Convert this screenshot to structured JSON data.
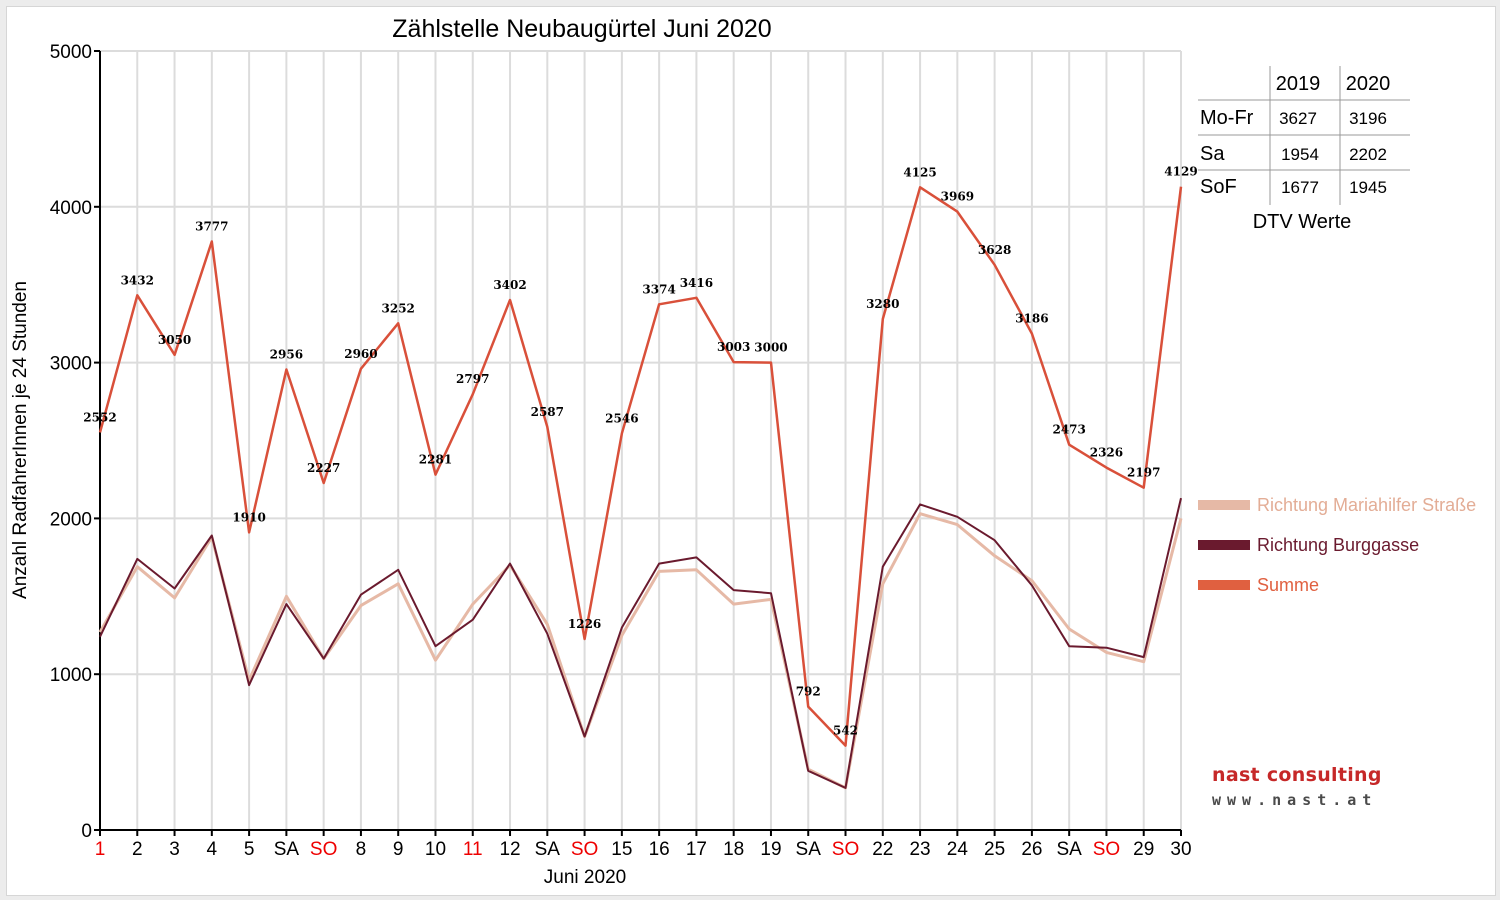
{
  "colors": {
    "summe": "#d9503a",
    "summe_legend": "#e06040",
    "mariahilfer": "#e6b9a6",
    "mariahilfer_label": "#e3ad96",
    "burggasse": "#6a1a2e",
    "holiday": "#ee0000",
    "grid": "#dcdcdc",
    "axis": "#000000",
    "text": "#000000",
    "logo_brand": "#c62828"
  },
  "chart_data": {
    "type": "line",
    "title": "Zählstelle Neubaugürtel Juni 2020",
    "xlabel": "Juni 2020",
    "ylabel": "Anzahl RadfahrerInnen je 24 Stunden",
    "ylim": [
      0,
      5000
    ],
    "yticks": [
      0,
      1000,
      2000,
      3000,
      4000,
      5000
    ],
    "grid": true,
    "legend_position": "right",
    "categories": [
      "1",
      "2",
      "3",
      "4",
      "5",
      "SA",
      "SO",
      "8",
      "9",
      "10",
      "11",
      "12",
      "SA",
      "SO",
      "15",
      "16",
      "17",
      "18",
      "19",
      "SA",
      "SO",
      "22",
      "23",
      "24",
      "25",
      "26",
      "SA",
      "SO",
      "29",
      "30"
    ],
    "red_categories": [
      0,
      6,
      10,
      13,
      20,
      27
    ],
    "series": [
      {
        "name": "Richtung Mariahilfer Straße",
        "color_key": "mariahilfer",
        "width": 3,
        "values": [
          1270,
          1690,
          1490,
          1880,
          960,
          1500,
          1100,
          1440,
          1580,
          1090,
          1450,
          1700,
          1320,
          600,
          1250,
          1660,
          1670,
          1450,
          1480,
          390,
          270,
          1580,
          2030,
          1960,
          1760,
          1600,
          1290,
          1140,
          1080,
          2000
        ]
      },
      {
        "name": "Richtung Burggasse",
        "color_key": "burggasse",
        "width": 2,
        "values": [
          1240,
          1740,
          1550,
          1890,
          930,
          1450,
          1100,
          1510,
          1670,
          1180,
          1350,
          1710,
          1260,
          600,
          1300,
          1710,
          1750,
          1540,
          1520,
          380,
          270,
          1690,
          2090,
          2010,
          1860,
          1570,
          1180,
          1170,
          1110,
          2130
        ]
      },
      {
        "name": "Summe",
        "color_key": "summe",
        "width": 2.5,
        "values": [
          2552,
          3432,
          3050,
          3777,
          1910,
          2956,
          2227,
          2960,
          3252,
          2281,
          2797,
          3402,
          2587,
          1226,
          2546,
          3374,
          3416,
          3003,
          3000,
          792,
          542,
          3280,
          4125,
          3969,
          3628,
          3186,
          2473,
          2326,
          2197,
          4129
        ]
      }
    ],
    "data_labels_series": "Summe"
  },
  "dtv_table": {
    "headers": [
      "",
      "2019",
      "2020"
    ],
    "rows": [
      [
        "Mo-Fr",
        "3627",
        "3196"
      ],
      [
        "Sa",
        "1954",
        "2202"
      ],
      [
        "SoF",
        "1677",
        "1945"
      ]
    ],
    "caption": "DTV Werte"
  },
  "logo": {
    "brand": "nast consulting",
    "url": "www.nast.at"
  }
}
